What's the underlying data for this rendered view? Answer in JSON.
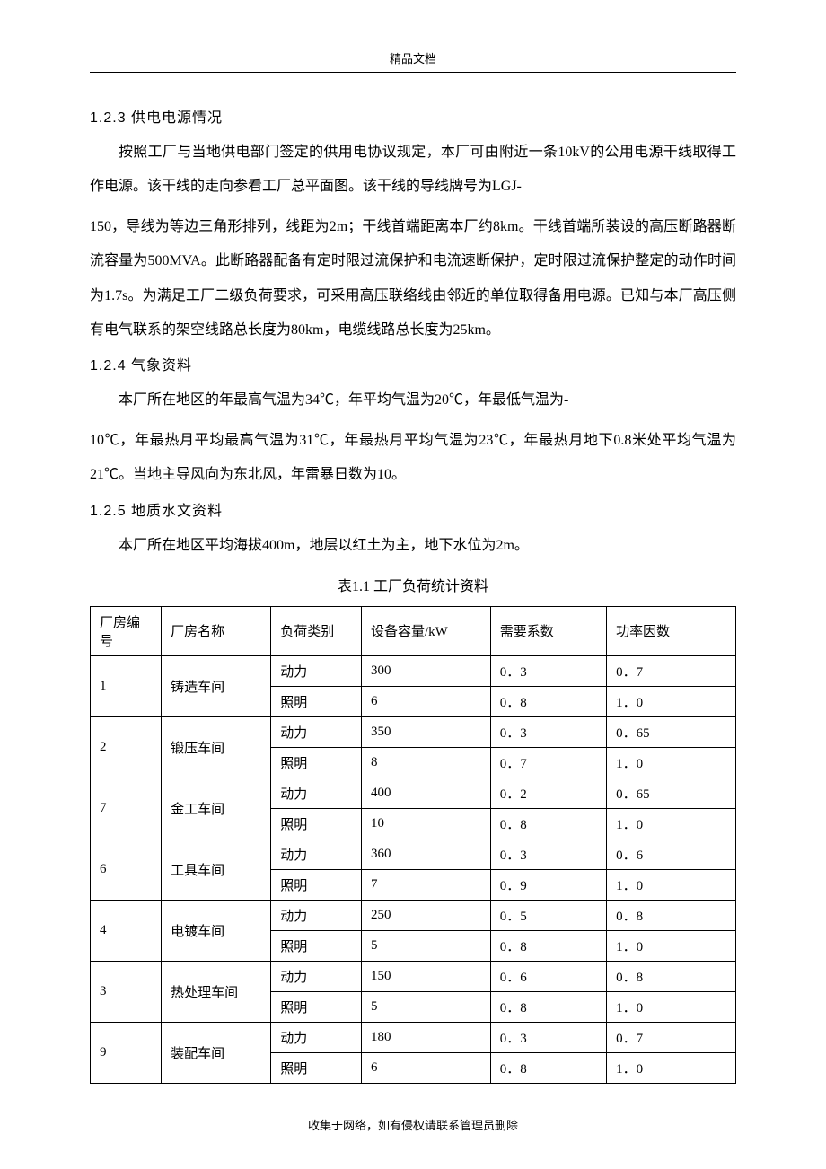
{
  "header": {
    "label": "精品文档"
  },
  "sections": {
    "s123": {
      "heading": "1.2.3  供电电源情况",
      "p1": "按照工厂与当地供电部门签定的供用电协议规定，本厂可由附近一条10kV的公用电源干线取得工作电源。该干线的走向参看工厂总平面图。该干线的导线牌号为LGJ-",
      "p2": "150，导线为等边三角形排列，线距为2m；干线首端距离本厂约8km。干线首端所装设的高压断路器断流容量为500MVA。此断路器配备有定时限过流保护和电流速断保护，定时限过流保护整定的动作时间为1.7s。为满足工厂二级负荷要求，可采用高压联络线由邻近的单位取得备用电源。已知与本厂高压侧有电气联系的架空线路总长度为80km，电缆线路总长度为25km。"
    },
    "s124": {
      "heading": "1.2.4  气象资料",
      "p1": "本厂所在地区的年最高气温为34℃，年平均气温为20℃，年最低气温为-",
      "p2": "10℃，年最热月平均最高气温为31℃，年最热月平均气温为23℃，年最热月地下0.8米处平均气温为21℃。当地主导风向为东北风，年雷暴日数为10。"
    },
    "s125": {
      "heading": "1.2.5  地质水文资料",
      "p1": "本厂所在地区平均海拔400m，地层以红土为主，地下水位为2m。"
    }
  },
  "table": {
    "caption": "表1.1  工厂负荷统计资料",
    "headers": {
      "id": "厂房编号",
      "name": "厂房名称",
      "loadType": "负荷类别",
      "capacity": "设备容量/kW",
      "demandCoef": "需要系数",
      "powerFactor": "功率因数"
    },
    "rows": [
      {
        "id": "1",
        "name": "铸造车间",
        "t1": "动力",
        "c1": "300",
        "d1": "0．3",
        "p1": "0．7",
        "t2": "照明",
        "c2": "6",
        "d2": "0．8",
        "p2": "1．0"
      },
      {
        "id": "2",
        "name": "锻压车间",
        "t1": "动力",
        "c1": "350",
        "d1": "0．3",
        "p1": "0．65",
        "t2": "照明",
        "c2": "8",
        "d2": "0．7",
        "p2": "1．0"
      },
      {
        "id": "7",
        "name": "金工车间",
        "t1": "动力",
        "c1": "400",
        "d1": "0．2",
        "p1": "0．65",
        "t2": "照明",
        "c2": "10",
        "d2": "0．8",
        "p2": "1．0"
      },
      {
        "id": "6",
        "name": "工具车间",
        "t1": "动力",
        "c1": "360",
        "d1": "0．3",
        "p1": "0．6",
        "t2": "照明",
        "c2": "7",
        "d2": "0．9",
        "p2": "1．0"
      },
      {
        "id": "4",
        "name": "电镀车间",
        "t1": "动力",
        "c1": "250",
        "d1": "0．5",
        "p1": "0．8",
        "t2": "照明",
        "c2": "5",
        "d2": "0．8",
        "p2": "1．0"
      },
      {
        "id": "3",
        "name": "热处理车间",
        "t1": "动力",
        "c1": "150",
        "d1": "0．6",
        "p1": "0．8",
        "t2": "照明",
        "c2": "5",
        "d2": "0．8",
        "p2": "1．0"
      },
      {
        "id": "9",
        "name": "装配车间",
        "t1": "动力",
        "c1": "180",
        "d1": "0．3",
        "p1": "0．7",
        "t2": "照明",
        "c2": "6",
        "d2": "0．8",
        "p2": "1．0"
      }
    ]
  },
  "footer": {
    "text": "收集于网络，如有侵权请联系管理员删除"
  }
}
